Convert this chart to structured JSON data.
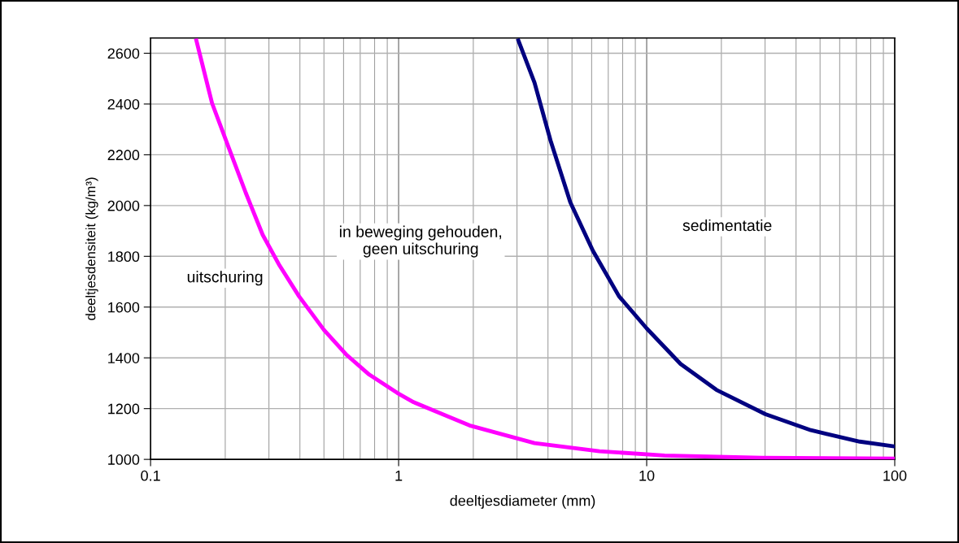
{
  "chart_data": {
    "type": "line",
    "xlabel": "deeltjesdiameter (mm)",
    "ylabel": "deeltjesdensiteit (kg/m³)",
    "log": "x",
    "xlim": [
      0.1,
      100
    ],
    "xticks": [
      0.1,
      1,
      10,
      100
    ],
    "ylim": [
      1000,
      2660
    ],
    "yticks": [
      1000,
      1200,
      1400,
      1600,
      1800,
      2000,
      2200,
      2400,
      2600
    ],
    "grid": true,
    "marker": "none",
    "line_style": "solid",
    "series": [
      {
        "color": "#ff00ff",
        "x": [
          0.153,
          0.177,
          0.207,
          0.242,
          0.283,
          0.331,
          0.397,
          0.5,
          0.618,
          0.761,
          0.987,
          1.15,
          1.93,
          3.53,
          6.45,
          11.8,
          29,
          100
        ],
        "values": [
          2650,
          2403,
          2226,
          2050,
          1885,
          1764,
          1642,
          1510,
          1411,
          1334,
          1262,
          1225,
          1134,
          1064,
          1032,
          1015,
          1006,
          1003
        ]
      },
      {
        "color": "#000080",
        "x": [
          3.04,
          3.53,
          4.1,
          4.92,
          6.07,
          7.73,
          10,
          13.7,
          19.1,
          30.1,
          45.9,
          72.3,
          100
        ],
        "values": [
          2650,
          2484,
          2255,
          2013,
          1822,
          1643,
          1516,
          1376,
          1274,
          1178,
          1115,
          1070,
          1051
        ]
      }
    ],
    "annotations": [
      "uitschuring",
      "in beweging gehouden,\ngeen uitschuring",
      "sedimentatie"
    ]
  }
}
